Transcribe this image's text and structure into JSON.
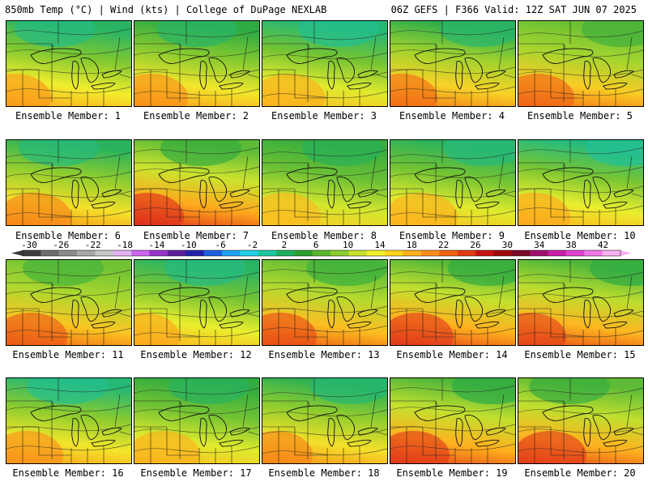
{
  "header": {
    "left_title": "850mb Temp (°C) | Wind (kts) | College of DuPage NEXLAB",
    "right_title": "06Z GEFS | F366 Valid: 12Z SAT JUN 07 2025"
  },
  "colorbar": {
    "ticks": [
      "-30",
      "-26",
      "-22",
      "-18",
      "-14",
      "-10",
      "-6",
      "-2",
      "2",
      "6",
      "10",
      "14",
      "18",
      "22",
      "26",
      "30",
      "34",
      "38",
      "42"
    ],
    "colors": [
      "#3c3c3c",
      "#6e6e6e",
      "#8c8c8c",
      "#a8a8a8",
      "#c8c8c8",
      "#e0b0f0",
      "#cc66ee",
      "#9933cc",
      "#5a1f99",
      "#2222aa",
      "#1e5fe0",
      "#1ea0f0",
      "#22d0e8",
      "#1ec8a0",
      "#1eb060",
      "#2ea02e",
      "#5cb82e",
      "#8ccc2e",
      "#c8e02e",
      "#f0f02e",
      "#ffd21e",
      "#ffb01e",
      "#ff8c1e",
      "#f06414",
      "#e03c14",
      "#c81414",
      "#a00a0a",
      "#7a0a28",
      "#a0106e",
      "#c81eaa",
      "#e040d0",
      "#f078e8",
      "#f8b0f0"
    ]
  },
  "members": [
    {
      "label": "Ensemble Member: 1",
      "warm": 0.45,
      "cool": 0.75
    },
    {
      "label": "Ensemble Member: 2",
      "warm": 0.5,
      "cool": 0.55
    },
    {
      "label": "Ensemble Member: 3",
      "warm": 0.35,
      "cool": 0.85
    },
    {
      "label": "Ensemble Member: 4",
      "warm": 0.65,
      "cool": 0.6
    },
    {
      "label": "Ensemble Member: 5",
      "warm": 0.7,
      "cool": 0.1
    },
    {
      "label": "Ensemble Member: 6",
      "warm": 0.55,
      "cool": 0.7
    },
    {
      "label": "Ensemble Member: 7",
      "warm": 0.95,
      "cool": 0.2
    },
    {
      "label": "Ensemble Member: 8",
      "warm": 0.3,
      "cool": 0.45
    },
    {
      "label": "Ensemble Member: 9",
      "warm": 0.35,
      "cool": 0.7
    },
    {
      "label": "Ensemble Member: 10",
      "warm": 0.4,
      "cool": 0.9
    },
    {
      "label": "Ensemble Member: 11",
      "warm": 0.75,
      "cool": 0.05
    },
    {
      "label": "Ensemble Member: 12",
      "warm": 0.4,
      "cool": 0.75
    },
    {
      "label": "Ensemble Member: 13",
      "warm": 0.8,
      "cool": 0.15
    },
    {
      "label": "Ensemble Member: 14",
      "warm": 0.9,
      "cool": 0.25
    },
    {
      "label": "Ensemble Member: 15",
      "warm": 0.85,
      "cool": 0.3
    },
    {
      "label": "Ensemble Member: 16",
      "warm": 0.5,
      "cool": 0.85
    },
    {
      "label": "Ensemble Member: 17",
      "warm": 0.35,
      "cool": 0.5
    },
    {
      "label": "Ensemble Member: 18",
      "warm": 0.55,
      "cool": 0.65
    },
    {
      "label": "Ensemble Member: 19",
      "warm": 0.9,
      "cool": 0.3
    },
    {
      "label": "Ensemble Member: 20",
      "warm": 0.88,
      "cool": 0.2
    }
  ]
}
